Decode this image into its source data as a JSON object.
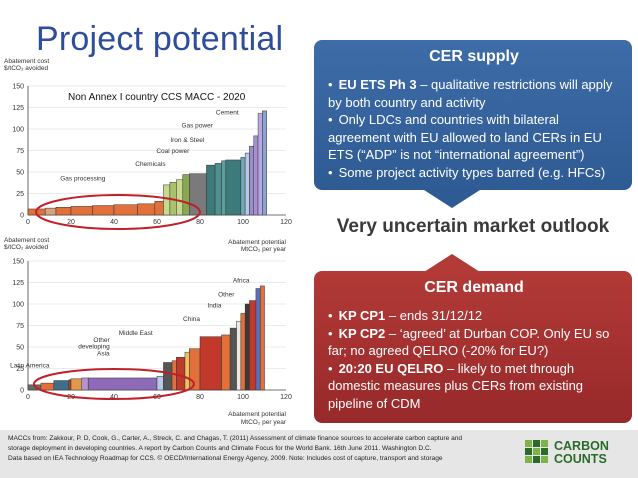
{
  "page": {
    "title": "Project potential"
  },
  "chart_data": [
    {
      "type": "bar",
      "title": "Non Annex I country CCS MACC - 2020",
      "ylabel_line1": "Abatement cost",
      "ylabel_line2": "$/tCO₂ avoided",
      "xlabel": "",
      "xlim": [
        0,
        120
      ],
      "ylim": [
        0,
        150
      ],
      "xticks": [
        0,
        20,
        40,
        60,
        80,
        100,
        120
      ],
      "yticks": [
        0,
        25,
        50,
        75,
        100,
        125,
        150
      ],
      "bars": [
        {
          "x0": 0,
          "x1": 8,
          "y": 7,
          "color": "#e2703a"
        },
        {
          "x0": 8,
          "x1": 13,
          "y": 8,
          "color": "#d9a17c"
        },
        {
          "x0": 13,
          "x1": 20,
          "y": 9,
          "color": "#e2703a"
        },
        {
          "x0": 20,
          "x1": 30,
          "y": 10,
          "color": "#e2703a"
        },
        {
          "x0": 30,
          "x1": 40,
          "y": 11,
          "color": "#e2703a"
        },
        {
          "x0": 40,
          "x1": 51,
          "y": 12,
          "color": "#e2703a"
        },
        {
          "x0": 51,
          "x1": 59,
          "y": 13,
          "color": "#e2703a"
        },
        {
          "x0": 59,
          "x1": 63,
          "y": 16,
          "color": "#e2703a"
        },
        {
          "x0": 63,
          "x1": 66,
          "y": 35,
          "color": "#c6d98c"
        },
        {
          "x0": 66,
          "x1": 69,
          "y": 38,
          "color": "#a8c36a"
        },
        {
          "x0": 69,
          "x1": 72,
          "y": 41,
          "color": "#c6d98c"
        },
        {
          "x0": 72,
          "x1": 75,
          "y": 47,
          "color": "#89a84f"
        },
        {
          "x0": 75,
          "x1": 83,
          "y": 48,
          "color": "#7a7a7a"
        },
        {
          "x0": 83,
          "x1": 87,
          "y": 58,
          "color": "#3f7a7a"
        },
        {
          "x0": 87,
          "x1": 90,
          "y": 60,
          "color": "#4f8f8f"
        },
        {
          "x0": 90,
          "x1": 92,
          "y": 63,
          "color": "#5aa0a0"
        },
        {
          "x0": 92,
          "x1": 99,
          "y": 64,
          "color": "#3f7a7a"
        },
        {
          "x0": 99,
          "x1": 101,
          "y": 67,
          "color": "#6fa8b8"
        },
        {
          "x0": 101,
          "x1": 103,
          "y": 72,
          "color": "#b8c9e8"
        },
        {
          "x0": 103,
          "x1": 105,
          "y": 80,
          "color": "#9a8ec8"
        },
        {
          "x0": 105,
          "x1": 107,
          "y": 92,
          "color": "#a58fd0"
        },
        {
          "x0": 107,
          "x1": 109,
          "y": 118,
          "color": "#b9a9e3"
        },
        {
          "x0": 109,
          "x1": 111,
          "y": 121,
          "color": "#8fa3d3"
        }
      ],
      "annotations": [
        {
          "text": "Cement",
          "x": 98,
          "y": 117
        },
        {
          "text": "Gas power",
          "x": 86,
          "y": 102
        },
        {
          "text": "Iron & Steel",
          "x": 82,
          "y": 85
        },
        {
          "text": "Coal power",
          "x": 75,
          "y": 72
        },
        {
          "text": "Chemicals",
          "x": 64,
          "y": 57
        },
        {
          "text": "Gas processing",
          "x": 36,
          "y": 40
        }
      ]
    },
    {
      "type": "bar",
      "title": "",
      "ylabel_line1": "Abatement cost",
      "ylabel_line2": "$/tCO₂ avoided",
      "xlabel_line1": "Abatement potential",
      "xlabel_line2": "MtCO₂ per year",
      "xlim": [
        0,
        120
      ],
      "ylim": [
        0,
        150
      ],
      "xticks": [
        0,
        20,
        40,
        60,
        80,
        100,
        120
      ],
      "yticks": [
        0,
        25,
        50,
        75,
        100,
        125,
        150
      ],
      "bars": [
        {
          "x0": 0,
          "x1": 6,
          "y": 6,
          "color": "#6a6a6a"
        },
        {
          "x0": 6,
          "x1": 12,
          "y": 8,
          "color": "#e2703a"
        },
        {
          "x0": 12,
          "x1": 19,
          "y": 11,
          "color": "#3f6e8a"
        },
        {
          "x0": 19,
          "x1": 20,
          "y": 12,
          "color": "#c0392b"
        },
        {
          "x0": 20,
          "x1": 25,
          "y": 13,
          "color": "#e09a4a"
        },
        {
          "x0": 25,
          "x1": 28,
          "y": 14,
          "color": "#b892d0"
        },
        {
          "x0": 28,
          "x1": 60,
          "y": 14,
          "color": "#8e6ab8"
        },
        {
          "x0": 60,
          "x1": 63,
          "y": 16,
          "color": "#b8c9e8"
        },
        {
          "x0": 63,
          "x1": 67,
          "y": 32,
          "color": "#555555"
        },
        {
          "x0": 67,
          "x1": 69,
          "y": 34,
          "color": "#e2703a"
        },
        {
          "x0": 69,
          "x1": 73,
          "y": 38,
          "color": "#c0392b"
        },
        {
          "x0": 73,
          "x1": 75,
          "y": 44,
          "color": "#f0c060"
        },
        {
          "x0": 75,
          "x1": 80,
          "y": 48,
          "color": "#e2703a"
        },
        {
          "x0": 80,
          "x1": 90,
          "y": 62,
          "color": "#c0392b"
        },
        {
          "x0": 90,
          "x1": 94,
          "y": 64,
          "color": "#e2703a"
        },
        {
          "x0": 94,
          "x1": 97,
          "y": 72,
          "color": "#555555"
        },
        {
          "x0": 97,
          "x1": 99,
          "y": 80,
          "color": "#e8e8e8"
        },
        {
          "x0": 99,
          "x1": 101,
          "y": 89,
          "color": "#e2703a"
        },
        {
          "x0": 101,
          "x1": 103,
          "y": 100,
          "color": "#3a3a3a"
        },
        {
          "x0": 103,
          "x1": 106,
          "y": 104,
          "color": "#c0392b"
        },
        {
          "x0": 106,
          "x1": 108,
          "y": 118,
          "color": "#5a6fb8"
        },
        {
          "x0": 108,
          "x1": 110,
          "y": 121,
          "color": "#e2703a"
        }
      ],
      "annotations": [
        {
          "text": "Africa",
          "x": 103,
          "y": 125
        },
        {
          "text": "Other",
          "x": 96,
          "y": 109
        },
        {
          "text": "India",
          "x": 90,
          "y": 96
        },
        {
          "text": "China",
          "x": 80,
          "y": 80
        },
        {
          "text": "Middle East",
          "x": 58,
          "y": 64
        },
        {
          "text": "Other",
          "x": 38,
          "y": 56
        },
        {
          "text": "developing",
          "x": 38,
          "y": 48
        },
        {
          "text": "Asia",
          "x": 38,
          "y": 40
        },
        {
          "text": "Latin America",
          "x": 10,
          "y": 26
        }
      ]
    }
  ],
  "cer_supply": {
    "heading": "CER supply",
    "bullets": [
      {
        "bold": "EU ETS Ph 3",
        "rest": " – qualitative restrictions will apply by both country and activity"
      },
      {
        "bold": "",
        "rest": "Only LDCs and countries with bilateral agreement with EU allowed to land CERs in EU ETS (“ADP” is not “international agreement”)"
      },
      {
        "bold": "",
        "rest": "Some project activity types barred (e.g. HFCs)"
      }
    ]
  },
  "outlook": "Very uncertain market outlook",
  "cer_demand": {
    "heading": "CER demand",
    "bullets": [
      {
        "bold": "KP CP1",
        "rest": " – ends 31/12/12"
      },
      {
        "bold": "KP CP2",
        "rest": " – ‘agreed’ at Durban COP.  Only EU so far; no agreed QELRO (-20% for EU?)"
      },
      {
        "bold": "20:20 EU QELRO",
        "rest": " – likely to met through domestic measures plus CERs from existing pipeline of CDM"
      }
    ]
  },
  "footer": {
    "line1": "MACCs from: Zakkour, P. D, Cook, G., Carter, A., Streck, C. and Chagas, T. (2011) Assessment of climate finance sources to accelerate carbon capture and",
    "line2": "storage deployment in developing countries. A report by Carbon Counts and Climate Focus for the World Bank. 16th June 2011. Washington D.C.",
    "line3": "Data based on IEA Technology Roadmap for CCS. © OECD/International Energy Agency, 2009. Note: Includes cost of capture, transport and storage"
  },
  "logo": {
    "line1": "CARBON",
    "line2": "COUNTS",
    "colors": {
      "green": "#2a6b2a",
      "light_green": "#7fb34a"
    }
  },
  "colors": {
    "title_blue": "#2e4d9c",
    "panel_blue": "#2f5b94",
    "panel_red": "#b23a37",
    "circle_red": "#c0202a"
  }
}
